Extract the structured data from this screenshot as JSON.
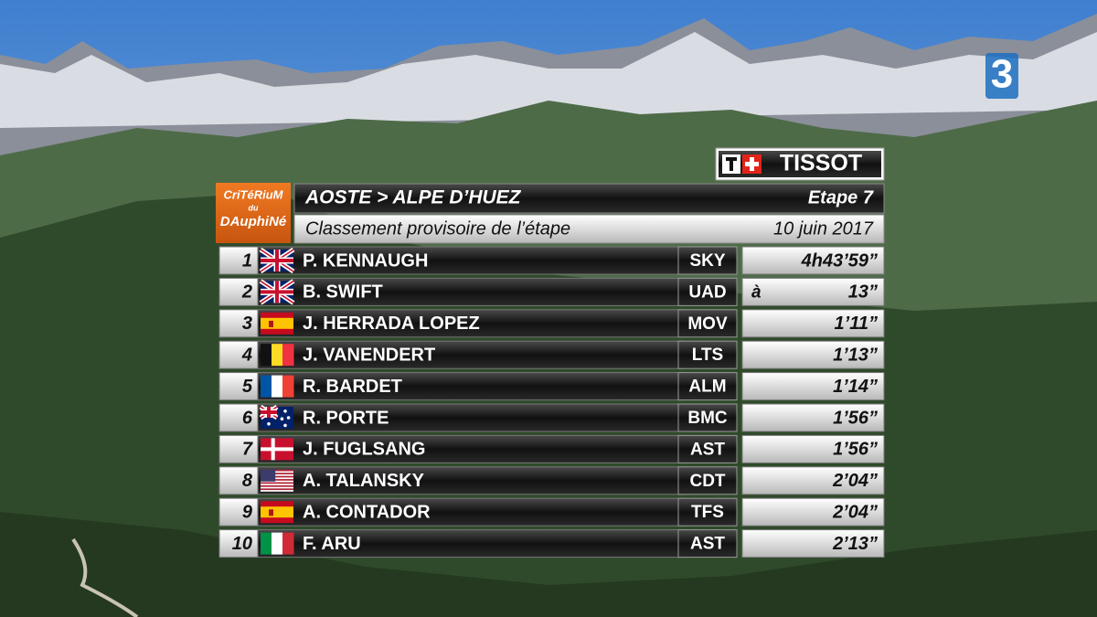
{
  "broadcaster": "3",
  "sponsor": "TISSOT",
  "race_logo": [
    "CriTéRiuM",
    "du",
    "DAuphiNé"
  ],
  "header": {
    "stage_route": "AOSTE > ALPE D’HUEZ",
    "stage": "Etape 7",
    "subtitle": "Classement provisoire de l’étape",
    "date": "10 juin 2017"
  },
  "table": {
    "rows": [
      {
        "rank": 1,
        "rider": "P. KENNAUGH",
        "team": "SKY",
        "time": "4h43’59”"
      },
      {
        "rank": 2,
        "rider": "B. SWIFT",
        "team": "UAD",
        "prefix": "à",
        "time": "13”"
      },
      {
        "rank": 3,
        "rider": "J. HERRADA LOPEZ",
        "team": "MOV",
        "time": "1’11”"
      },
      {
        "rank": 4,
        "rider": "J. VANENDERT",
        "team": "LTS",
        "time": "1’13”"
      },
      {
        "rank": 5,
        "rider": "R. BARDET",
        "team": "ALM",
        "time": "1’14”"
      },
      {
        "rank": 6,
        "rider": "R. PORTE",
        "team": "BMC",
        "time": "1’56”"
      },
      {
        "rank": 7,
        "rider": "J. FUGLSANG",
        "team": "AST",
        "time": "1’56”"
      },
      {
        "rank": 8,
        "rider": "A. TALANSKY",
        "team": "CDT",
        "time": "2’04”"
      },
      {
        "rank": 9,
        "rider": "A. CONTADOR",
        "team": "TFS",
        "time": "2’04”"
      },
      {
        "rank": 10,
        "rider": "F. ARU",
        "team": "AST",
        "time": "2’13”"
      }
    ]
  }
}
